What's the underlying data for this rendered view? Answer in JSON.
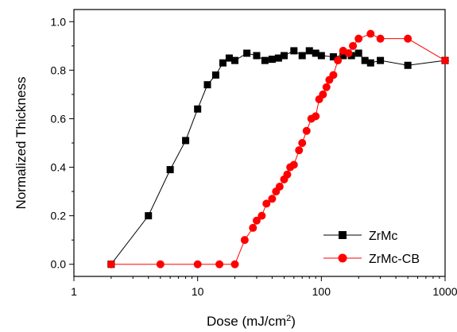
{
  "chart_data": {
    "type": "line",
    "title": "",
    "xlabel": "Dose (mJ/cm",
    "xlabel_sup": "2",
    "xlabel_suffix": ")",
    "ylabel": "Normalized Thickness",
    "xscale": "log",
    "xlim": [
      1,
      1000
    ],
    "ylim": [
      -0.05,
      1.05
    ],
    "x_ticks": [
      1,
      10,
      100,
      1000
    ],
    "x_tick_labels": [
      "1",
      "10",
      "100",
      "1000"
    ],
    "y_ticks": [
      0.0,
      0.2,
      0.4,
      0.6,
      0.8,
      1.0
    ],
    "y_tick_labels": [
      "0.0",
      "0.2",
      "0.4",
      "0.6",
      "0.8",
      "1.0"
    ],
    "grid": false,
    "legend_position": "bottom-right",
    "series": [
      {
        "name": "ZrMc",
        "color": "#000000",
        "marker": "square",
        "x": [
          2,
          4,
          6,
          8,
          10,
          12,
          14,
          16,
          18,
          20,
          25,
          30,
          35,
          40,
          45,
          50,
          60,
          70,
          80,
          90,
          100,
          125,
          150,
          175,
          200,
          225,
          250,
          300,
          500,
          1000
        ],
        "y": [
          0.0,
          0.2,
          0.39,
          0.51,
          0.64,
          0.74,
          0.78,
          0.83,
          0.85,
          0.84,
          0.87,
          0.86,
          0.84,
          0.845,
          0.85,
          0.86,
          0.88,
          0.86,
          0.88,
          0.87,
          0.86,
          0.855,
          0.86,
          0.86,
          0.87,
          0.84,
          0.83,
          0.84,
          0.82,
          0.84
        ]
      },
      {
        "name": "ZrMc-CB",
        "color": "#ff0000",
        "marker": "circle",
        "x": [
          2,
          5,
          10,
          15,
          20,
          24,
          28,
          30,
          33,
          36,
          40,
          43,
          46,
          50,
          53,
          56,
          60,
          66,
          70,
          76,
          83,
          90,
          96,
          103,
          110,
          116,
          125,
          136,
          150,
          166,
          180,
          200,
          250,
          300,
          500,
          1000
        ],
        "y": [
          0.0,
          0.0,
          0.0,
          0.0,
          0.0,
          0.1,
          0.15,
          0.18,
          0.2,
          0.25,
          0.27,
          0.3,
          0.32,
          0.35,
          0.37,
          0.4,
          0.41,
          0.47,
          0.5,
          0.55,
          0.6,
          0.61,
          0.68,
          0.7,
          0.73,
          0.76,
          0.78,
          0.84,
          0.88,
          0.87,
          0.9,
          0.93,
          0.95,
          0.93,
          0.93,
          0.84
        ]
      }
    ]
  }
}
